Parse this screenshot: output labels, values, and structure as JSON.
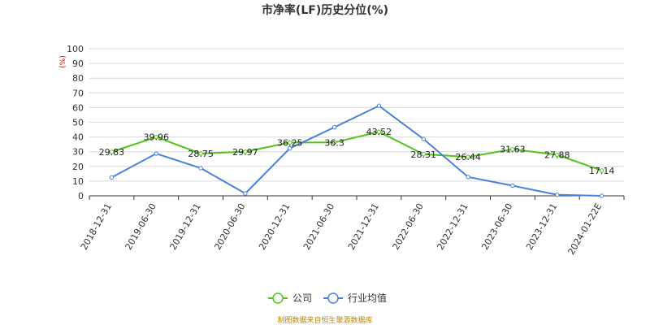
{
  "chart_data": {
    "type": "line",
    "title": "市净率(LF)历史分位(%)",
    "unit_label": "(%)",
    "categories": [
      "2018-12-31",
      "2019-06-30",
      "2019-12-31",
      "2020-06-30",
      "2020-12-31",
      "2021-06-30",
      "2021-12-31",
      "2022-06-30",
      "2022-12-31",
      "2023-06-30",
      "2023-12-31",
      "2024-01-22E"
    ],
    "ylim": [
      0,
      100
    ],
    "yticks": [
      0,
      10,
      20,
      30,
      40,
      50,
      60,
      70,
      80,
      90,
      100
    ],
    "grid": true,
    "legend_position": "bottom",
    "series": [
      {
        "name": "公司",
        "color": "#52c41a",
        "values": [
          29.83,
          39.96,
          28.75,
          29.97,
          36.25,
          36.3,
          43.52,
          28.31,
          26.44,
          31.63,
          27.88,
          17.14
        ],
        "labels": [
          "29.83",
          "39.96",
          "28.75",
          "29.97",
          "36.25",
          "36.3",
          "43.52",
          "28.31",
          "26.44",
          "31.63",
          "27.88",
          "17.14"
        ]
      },
      {
        "name": "行业均值",
        "color": "#4a7fdb",
        "values": [
          12.5,
          28.7,
          18.8,
          1.6,
          32.3,
          46.6,
          61.2,
          38.6,
          12.8,
          6.9,
          0.7,
          0.0
        ]
      }
    ],
    "source": "制图数据来自恒生聚源数据库"
  }
}
